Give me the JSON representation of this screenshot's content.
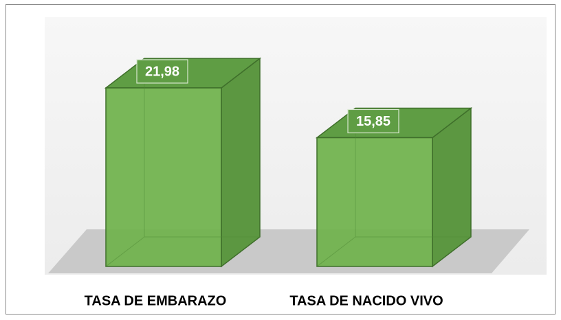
{
  "chart_data": {
    "type": "bar3d",
    "categories": [
      "TASA DE EMBARAZO",
      "TASA DE NACIDO VIVO"
    ],
    "values": [
      21.98,
      15.85
    ],
    "value_labels": [
      "21,98",
      "15,85"
    ],
    "color": "#72b34f"
  }
}
